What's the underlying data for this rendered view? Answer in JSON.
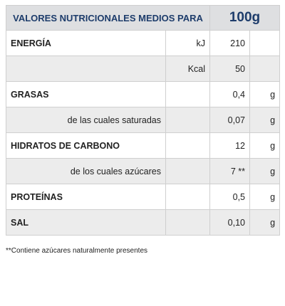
{
  "header": {
    "title": "VALORES NUTRICIONALES MEDIOS PARA",
    "amount": "100g"
  },
  "table": {
    "rows": [
      {
        "label": "ENERGÍA",
        "unit": "kJ",
        "value": "210"
      },
      {
        "unit": "Kcal",
        "value": "50"
      },
      {
        "label": "GRASAS",
        "value": "0,4",
        "unit2": "g"
      },
      {
        "sublabel": "de las cuales saturadas",
        "value": "0,07",
        "unit2": "g"
      },
      {
        "label": "HIDRATOS DE CARBONO",
        "value": "12",
        "unit2": "g"
      },
      {
        "sublabel": "de los cuales azúcares",
        "value": "7 **",
        "unit2": "g"
      },
      {
        "label": "PROTEÍNAS",
        "value": "0,5",
        "unit2": "g"
      },
      {
        "label": "SAL",
        "value": "0,10",
        "unit2": "g"
      }
    ]
  },
  "footnote": "**Contiene azúcares naturalmente presentes"
}
